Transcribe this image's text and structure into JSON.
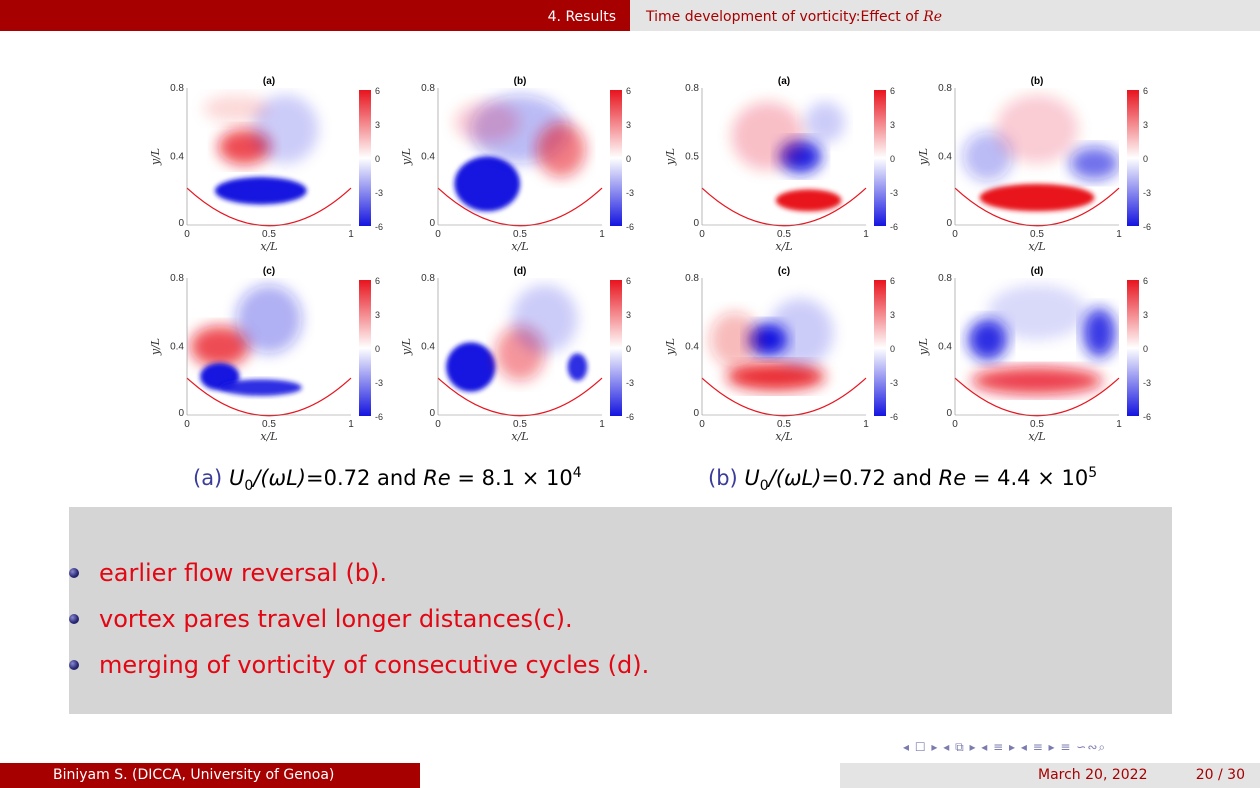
{
  "header": {
    "section": "4. Results",
    "title_prefix": "Time development of vorticity:Effect of ",
    "title_math": "Re"
  },
  "figure": {
    "groups": [
      {
        "caption_tag": "(a)",
        "caption_pre": "0",
        "caption_mid": "=0.72 and ",
        "caption_eq": " = 8.1 × 10",
        "caption_exp": "4",
        "panels": [
          {
            "letter": "(a)",
            "ymax_label": "0.8",
            "ymid_label": "0.4"
          },
          {
            "letter": "(b)",
            "ymax_label": "0.8",
            "ymid_label": "0.4"
          },
          {
            "letter": "(c)",
            "ymax_label": "0.8",
            "ymid_label": "0.4"
          },
          {
            "letter": "(d)",
            "ymax_label": "0.8",
            "ymid_label": "0.4"
          }
        ]
      },
      {
        "caption_tag": "(b)",
        "caption_pre": "0",
        "caption_mid": "=0.72 and ",
        "caption_eq": " = 4.4 × 10",
        "caption_exp": "5",
        "panels": [
          {
            "letter": "(a)",
            "ymax_label": "0.8",
            "ymid_label": "0.5"
          },
          {
            "letter": "(b)",
            "ymax_label": "0.8",
            "ymid_label": "0.4"
          },
          {
            "letter": "(c)",
            "ymax_label": "0.8",
            "ymid_label": "0.4"
          },
          {
            "letter": "(d)",
            "ymax_label": "0.8",
            "ymid_label": "0.4"
          }
        ]
      }
    ],
    "x_ticks": [
      "0",
      "0.5",
      "1"
    ],
    "y_zero": "0",
    "xlabel": "x/L",
    "ylabel": "y/L",
    "colorbar_ticks": [
      "6",
      "3",
      "0",
      "-3",
      "-6"
    ],
    "colors": {
      "positive": "#e8141e",
      "negative": "#1414e0",
      "neutral": "#ffffff"
    }
  },
  "caption_math": {
    "U": "U",
    "omega_L": "/(ωL)",
    "Re": "Re"
  },
  "bullets": [
    "earlier flow reversal (b).",
    "vortex pares travel longer distances(c).",
    "merging of vorticity of consecutive cycles (d)."
  ],
  "navigation": {
    "symbols": "◂ ☐ ▸ ◂ ⧉ ▸ ◂ ≡ ▸ ◂ ≡ ▸ ≡ ∽∾⌕"
  },
  "footer": {
    "author": "Biniyam S.  (DICCA, University of Genoa)",
    "date": "March 20, 2022",
    "page": "20 / 30"
  }
}
